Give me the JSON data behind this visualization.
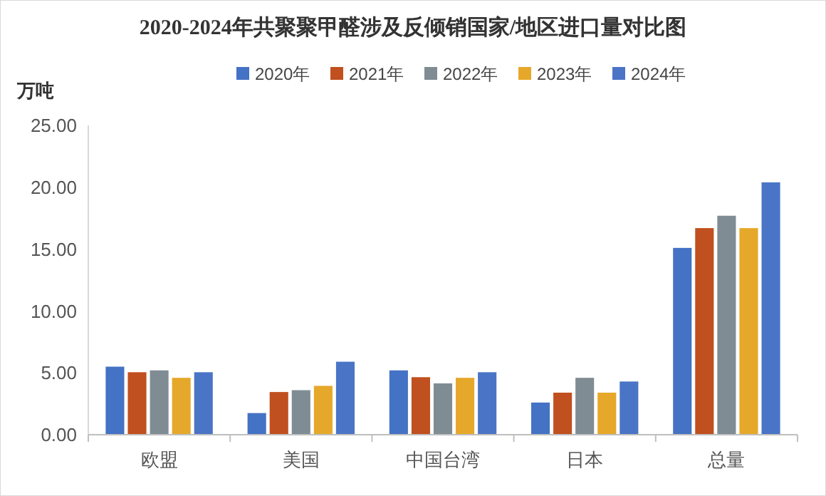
{
  "chart_data": {
    "type": "bar",
    "title": "2020-2024年共聚聚甲醛涉及反倾销国家/地区进口量对比图",
    "ylabel": "万吨",
    "categories": [
      "欧盟",
      "美国",
      "中国台湾",
      "日本",
      "总量"
    ],
    "series": [
      {
        "name": "2020年",
        "color": "#4472c4",
        "values": [
          5.5,
          1.75,
          5.2,
          2.6,
          15.1
        ]
      },
      {
        "name": "2021年",
        "color": "#c0501f",
        "values": [
          5.05,
          3.45,
          4.65,
          3.4,
          16.7
        ]
      },
      {
        "name": "2022年",
        "color": "#7f8c94",
        "values": [
          5.2,
          3.6,
          4.15,
          4.6,
          17.7
        ]
      },
      {
        "name": "2023年",
        "color": "#e6a82a",
        "values": [
          4.6,
          3.95,
          4.6,
          3.4,
          16.7
        ]
      },
      {
        "name": "2024年",
        "color": "#4a74c6",
        "values": [
          5.05,
          5.9,
          5.05,
          4.3,
          20.4
        ]
      }
    ],
    "ylim": [
      0,
      25
    ],
    "yticks": [
      {
        "value": 0,
        "label": "0.00"
      },
      {
        "value": 5,
        "label": "5.00"
      },
      {
        "value": 10,
        "label": "10.00"
      },
      {
        "value": 15,
        "label": "15.00"
      },
      {
        "value": 20,
        "label": "20.00"
      },
      {
        "value": 25,
        "label": "25.00"
      }
    ],
    "legend": "top",
    "grid": false
  }
}
